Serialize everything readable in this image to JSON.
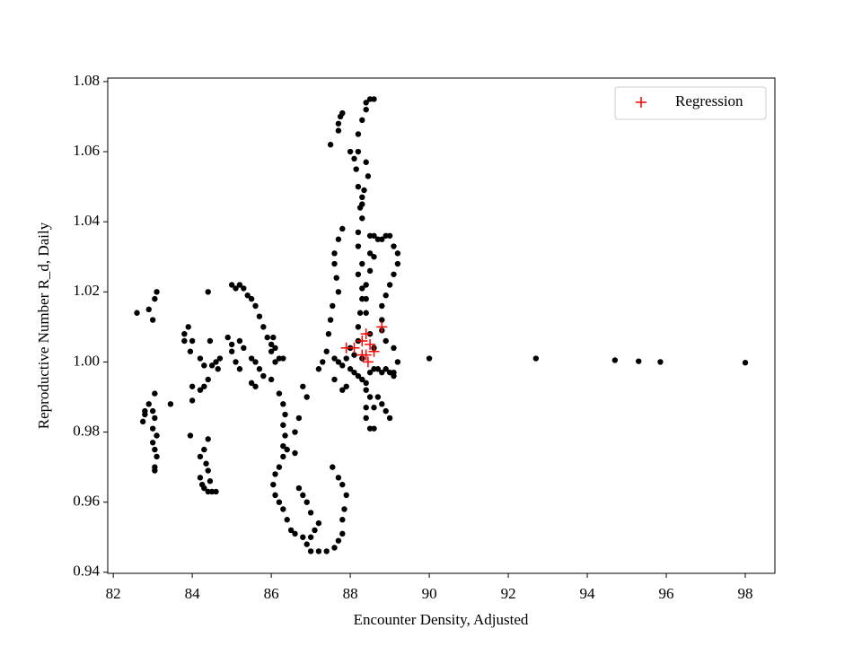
{
  "chart_data": {
    "type": "scatter",
    "xlabel": "Encounter Density, Adjusted",
    "ylabel": "Reproductive Number R_d, Daily",
    "xlim": [
      81.86,
      98.75
    ],
    "ylim": [
      0.9397,
      1.081
    ],
    "xticks": [
      82,
      84,
      86,
      88,
      90,
      92,
      94,
      96,
      98
    ],
    "yticks": [
      {
        "value": 0.94,
        "label": "0.94"
      },
      {
        "value": 0.96,
        "label": "0.96"
      },
      {
        "value": 0.98,
        "label": "0.98"
      },
      {
        "value": 1.0,
        "label": "1.00"
      },
      {
        "value": 1.02,
        "label": "1.02"
      },
      {
        "value": 1.04,
        "label": "1.04"
      },
      {
        "value": 1.06,
        "label": "1.06"
      },
      {
        "value": 1.08,
        "label": "1.08"
      }
    ],
    "grid": false,
    "legend": "upper right",
    "series": [
      {
        "color": "#000000",
        "marker": "dot",
        "x": [
          82.6,
          82.9,
          83.0,
          83.05,
          83.1,
          83.05,
          82.9,
          82.8,
          82.75,
          82.8,
          83.0,
          83.05,
          83.0,
          83.1,
          83.0,
          83.05,
          83.1,
          83.05,
          83.05,
          83.45,
          83.8,
          83.8,
          83.9,
          84.0,
          83.95,
          84.2,
          84.3,
          84.45,
          84.4,
          84.0,
          84.0,
          84.2,
          84.3,
          84.4,
          84.5,
          84.6,
          84.7,
          84.65,
          83.95,
          84.2,
          84.3,
          84.4,
          84.35,
          84.4,
          84.45,
          84.2,
          84.25,
          84.3,
          84.4,
          84.5,
          84.6,
          85.0,
          85.1,
          85.2,
          85.3,
          85.4,
          85.5,
          85.6,
          85.7,
          85.8,
          85.9,
          86.0,
          86.1,
          86.0,
          86.05,
          86.1,
          86.2,
          86.3,
          86.0,
          86.2,
          86.3,
          86.35,
          86.3,
          86.35,
          86.3,
          86.3,
          86.2,
          86.1,
          86.05,
          86.1,
          86.2,
          86.3,
          86.4,
          86.5,
          86.6,
          86.8,
          86.9,
          87.0,
          87.2,
          87.4,
          87.6,
          87.7,
          87.8,
          87.8,
          87.85,
          87.9,
          87.8,
          87.7,
          87.55,
          85.2,
          85.3,
          85.5,
          85.6,
          85.7,
          85.8,
          85.5,
          85.6,
          85.0,
          84.9,
          85.0,
          85.2,
          85.1,
          86.8,
          86.9,
          86.7,
          86.6,
          86.4,
          86.6,
          86.7,
          86.8,
          86.9,
          87.0,
          87.2,
          87.1,
          87.0,
          87.5,
          87.7,
          87.75,
          87.8,
          87.7,
          88.0,
          88.1,
          88.15,
          88.2,
          88.3,
          88.25,
          88.3,
          88.2,
          88.2,
          88.3,
          88.2,
          88.3,
          88.3,
          88.25,
          88.2,
          88.2,
          88.4,
          88.5,
          88.6,
          88.4,
          88.3,
          88.2,
          88.2,
          88.4,
          88.45,
          88.35,
          88.3,
          87.7,
          87.6,
          87.6,
          87.65,
          87.8,
          87.7,
          87.55,
          87.5,
          87.45,
          87.4,
          87.3,
          87.2,
          88.5,
          88.6,
          88.7,
          88.8,
          88.9,
          89.0,
          89.1,
          89.2,
          89.2,
          89.1,
          89.0,
          88.9,
          88.8,
          88.8,
          88.8,
          88.9,
          89.1,
          89.2,
          89.1,
          88.6,
          88.5,
          88.4,
          88.5,
          88.4,
          88.4,
          88.5,
          88.6,
          87.6,
          87.7,
          87.8,
          87.9,
          88.0,
          88.1,
          88.2,
          88.3,
          88.4,
          88.5,
          88.6,
          88.7,
          88.8,
          88.9,
          89.0,
          89.1,
          88.0,
          88.1,
          88.3,
          87.9,
          87.8,
          87.6,
          88.4,
          88.5,
          88.6,
          88.7,
          88.8,
          88.9,
          89.0,
          88.4,
          88.5,
          88.6,
          88.4,
          90.0,
          92.7,
          94.7,
          95.3,
          95.85,
          98.0
        ],
        "values": [
          1.014,
          1.015,
          1.012,
          1.018,
          1.02,
          0.991,
          0.988,
          0.985,
          0.983,
          0.986,
          0.986,
          0.984,
          0.981,
          0.979,
          0.977,
          0.975,
          0.973,
          0.97,
          0.969,
          0.988,
          1.008,
          1.006,
          1.01,
          1.006,
          1.003,
          1.001,
          0.999,
          1.006,
          1.02,
          0.993,
          0.989,
          0.992,
          0.993,
          0.995,
          0.999,
          1.0,
          1.001,
          0.998,
          0.979,
          0.973,
          0.975,
          0.978,
          0.971,
          0.969,
          0.966,
          0.967,
          0.965,
          0.964,
          0.963,
          0.963,
          0.963,
          1.022,
          1.021,
          1.022,
          1.021,
          1.019,
          1.018,
          1.016,
          1.013,
          1.01,
          1.007,
          1.003,
          1.0,
          1.005,
          1.007,
          1.004,
          1.001,
          1.001,
          0.995,
          0.991,
          0.988,
          0.985,
          0.982,
          0.979,
          0.976,
          0.973,
          0.97,
          0.968,
          0.965,
          0.962,
          0.96,
          0.958,
          0.955,
          0.952,
          0.951,
          0.95,
          0.948,
          0.946,
          0.946,
          0.946,
          0.947,
          0.949,
          0.951,
          0.955,
          0.958,
          0.962,
          0.965,
          0.967,
          0.97,
          1.006,
          1.004,
          1.001,
          1.0,
          0.998,
          0.996,
          0.994,
          0.993,
          1.005,
          1.007,
          1.003,
          0.998,
          1.0,
          0.993,
          0.99,
          0.984,
          0.98,
          0.975,
          0.974,
          0.964,
          0.962,
          0.96,
          0.957,
          0.954,
          0.952,
          0.95,
          1.062,
          1.066,
          1.07,
          1.071,
          1.068,
          1.06,
          1.058,
          1.055,
          1.05,
          1.047,
          1.044,
          1.041,
          1.037,
          1.033,
          1.028,
          1.025,
          1.021,
          1.018,
          1.014,
          1.01,
          1.006,
          1.074,
          1.075,
          1.075,
          1.072,
          1.069,
          1.065,
          1.06,
          1.057,
          1.053,
          1.049,
          1.045,
          1.035,
          1.031,
          1.028,
          1.024,
          1.038,
          1.02,
          1.016,
          1.012,
          1.008,
          1.003,
          1.0,
          0.998,
          1.036,
          1.036,
          1.035,
          1.035,
          1.036,
          1.036,
          1.033,
          1.031,
          1.028,
          1.025,
          1.022,
          1.019,
          1.016,
          1.012,
          1.009,
          1.006,
          1.004,
          1.0,
          0.997,
          1.03,
          1.026,
          1.022,
          1.031,
          1.018,
          1.014,
          1.008,
          1.004,
          1.001,
          1.0,
          0.999,
          1.001,
          0.998,
          0.997,
          0.996,
          0.995,
          0.994,
          0.997,
          0.998,
          0.998,
          0.997,
          0.998,
          0.997,
          0.996,
          1.004,
          1.002,
          1.001,
          0.993,
          0.992,
          0.995,
          0.992,
          0.99,
          0.987,
          0.99,
          0.988,
          0.986,
          0.984,
          0.984,
          0.981,
          0.981,
          0.987,
          1.001,
          1.001,
          1.0005,
          1.0002,
          1.0,
          0.9998
        ]
      },
      {
        "name": "Regression",
        "color": "#ff0000",
        "marker": "plus",
        "x": [
          87.9,
          88.1,
          88.3,
          88.4,
          88.5,
          88.6,
          88.8,
          88.4,
          88.45,
          88.3
        ],
        "values": [
          1.004,
          1.004,
          1.006,
          1.008,
          1.005,
          1.003,
          1.01,
          1.002,
          1.0,
          1.002
        ]
      }
    ]
  }
}
